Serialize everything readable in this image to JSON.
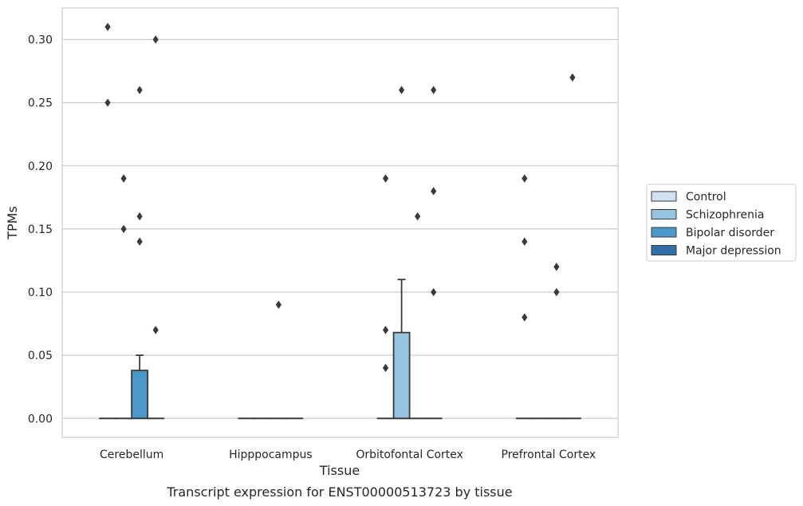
{
  "chart_data": {
    "type": "box",
    "title": "Transcript expression for ENST00000513723 by tissue",
    "xlabel": "Tissue",
    "ylabel": "TPMs",
    "categories": [
      "Cerebellum",
      "Hipppocampus",
      "Orbitofontal Cortex",
      "Prefrontal Cortex"
    ],
    "ylim": [
      -0.015,
      0.325
    ],
    "yticks": [
      0.0,
      0.05,
      0.1,
      0.15,
      0.2,
      0.25,
      0.3
    ],
    "ytick_labels": [
      "0.00",
      "0.05",
      "0.10",
      "0.15",
      "0.20",
      "0.25",
      "0.30"
    ],
    "grid": "horizontal",
    "legend_position": "right",
    "series": [
      {
        "name": "Control",
        "color": "#d0e1f2",
        "boxes": [
          {
            "q1": 0,
            "median": 0,
            "q3": 0,
            "whisker_low": 0,
            "whisker_high": 0,
            "outliers": [
              0.31,
              0.25
            ]
          },
          {
            "q1": 0,
            "median": 0,
            "q3": 0,
            "whisker_low": 0,
            "whisker_high": 0,
            "outliers": []
          },
          {
            "q1": 0,
            "median": 0,
            "q3": 0,
            "whisker_low": 0,
            "whisker_high": 0,
            "outliers": [
              0.19,
              0.07,
              0.04
            ]
          },
          {
            "q1": 0,
            "median": 0,
            "q3": 0,
            "whisker_low": 0,
            "whisker_high": 0,
            "outliers": [
              0.19,
              0.14,
              0.08
            ]
          }
        ]
      },
      {
        "name": "Schizophrenia",
        "color": "#94c4df",
        "boxes": [
          {
            "q1": 0,
            "median": 0,
            "q3": 0,
            "whisker_low": 0,
            "whisker_high": 0,
            "outliers": [
              0.19,
              0.15
            ]
          },
          {
            "q1": 0,
            "median": 0,
            "q3": 0,
            "whisker_low": 0,
            "whisker_high": 0,
            "outliers": []
          },
          {
            "q1": 0,
            "median": 0,
            "q3": 0.068,
            "whisker_low": 0,
            "whisker_high": 0.11,
            "outliers": [
              0.26
            ]
          },
          {
            "q1": 0,
            "median": 0,
            "q3": 0,
            "whisker_low": 0,
            "whisker_high": 0,
            "outliers": []
          }
        ]
      },
      {
        "name": "Bipolar disorder",
        "color": "#4a98c9",
        "boxes": [
          {
            "q1": 0,
            "median": 0,
            "q3": 0.038,
            "whisker_low": 0,
            "whisker_high": 0.05,
            "outliers": [
              0.26,
              0.16,
              0.14
            ]
          },
          {
            "q1": 0,
            "median": 0,
            "q3": 0,
            "whisker_low": 0,
            "whisker_high": 0,
            "outliers": [
              0.09
            ]
          },
          {
            "q1": 0,
            "median": 0,
            "q3": 0,
            "whisker_low": 0,
            "whisker_high": 0,
            "outliers": [
              0.16
            ]
          },
          {
            "q1": 0,
            "median": 0,
            "q3": 0,
            "whisker_low": 0,
            "whisker_high": 0,
            "outliers": [
              0.12,
              0.1
            ]
          }
        ]
      },
      {
        "name": "Major depression",
        "color": "#2e6fa7",
        "boxes": [
          {
            "q1": 0,
            "median": 0,
            "q3": 0,
            "whisker_low": 0,
            "whisker_high": 0,
            "outliers": [
              0.3,
              0.07
            ]
          },
          {
            "q1": 0,
            "median": 0,
            "q3": 0,
            "whisker_low": 0,
            "whisker_high": 0,
            "outliers": []
          },
          {
            "q1": 0,
            "median": 0,
            "q3": 0,
            "whisker_low": 0,
            "whisker_high": 0,
            "outliers": [
              0.26,
              0.18,
              0.1
            ]
          },
          {
            "q1": 0,
            "median": 0,
            "q3": 0,
            "whisker_low": 0,
            "whisker_high": 0,
            "outliers": [
              0.27
            ]
          }
        ]
      }
    ]
  }
}
